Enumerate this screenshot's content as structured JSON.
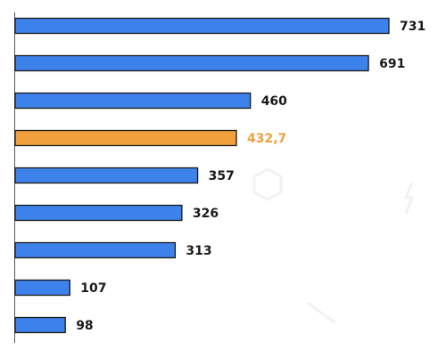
{
  "chart_data": {
    "type": "bar",
    "orientation": "horizontal",
    "categories": [
      "",
      "",
      "",
      "",
      "",
      "",
      "",
      "",
      ""
    ],
    "values": [
      731,
      691,
      460,
      432.7,
      357,
      326,
      313,
      107,
      98
    ],
    "value_labels": [
      "731",
      "691",
      "460",
      "432,7",
      "357",
      "326",
      "313",
      "107",
      "98"
    ],
    "highlight_index": 3,
    "title": "",
    "xlabel": "",
    "ylabel": "",
    "xlim": [
      0,
      731
    ],
    "grid": false,
    "legend": "none"
  },
  "colors": {
    "bar": "#3d82ea",
    "highlight_bar": "#f0a03c",
    "label": "#1a1a1a",
    "highlight_label": "#f0a03c",
    "axis": "#555555"
  }
}
